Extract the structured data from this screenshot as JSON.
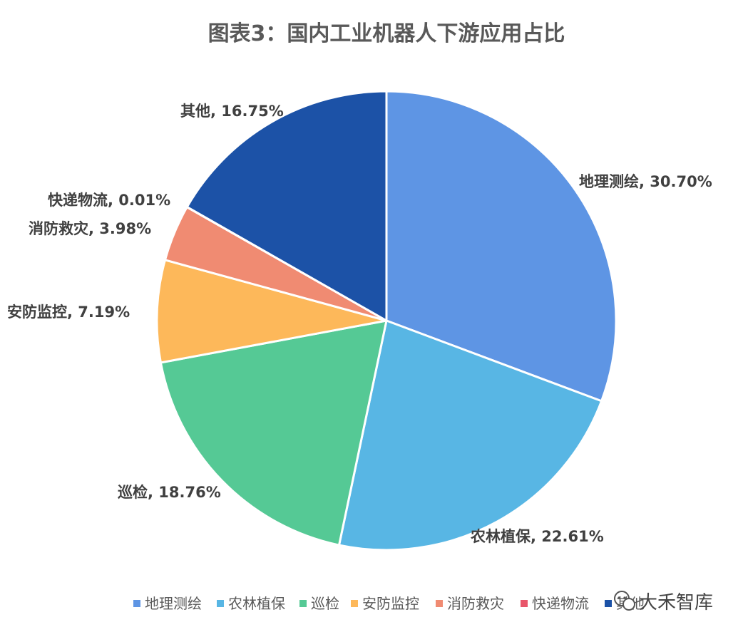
{
  "chart_data": {
    "type": "pie",
    "title": "图表3：国内工业机器人下游应用占比",
    "slices": [
      {
        "label": "地理测绘",
        "value": 30.7,
        "display": "地理测绘, 30.70%",
        "color": "#5e95e4"
      },
      {
        "label": "农林植保",
        "value": 22.61,
        "display": "农林植保, 22.61%",
        "color": "#58b6e4"
      },
      {
        "label": "巡检",
        "value": 18.76,
        "display": "巡检, 18.76%",
        "color": "#55c995"
      },
      {
        "label": "安防监控",
        "value": 7.19,
        "display": "安防监控, 7.19%",
        "color": "#fdb85a"
      },
      {
        "label": "消防救灾",
        "value": 3.98,
        "display": "消防救灾, 3.98%",
        "color": "#f08b72"
      },
      {
        "label": "快递物流",
        "value": 0.01,
        "display": "快递物流, 0.01%",
        "color": "#e8566a"
      },
      {
        "label": "其他",
        "value": 16.75,
        "display": "其他, 16.75%",
        "color": "#1c52a7"
      }
    ],
    "legend_position": "bottom"
  },
  "watermark": {
    "text": "大禾智库",
    "icon": "wechat-icon"
  }
}
